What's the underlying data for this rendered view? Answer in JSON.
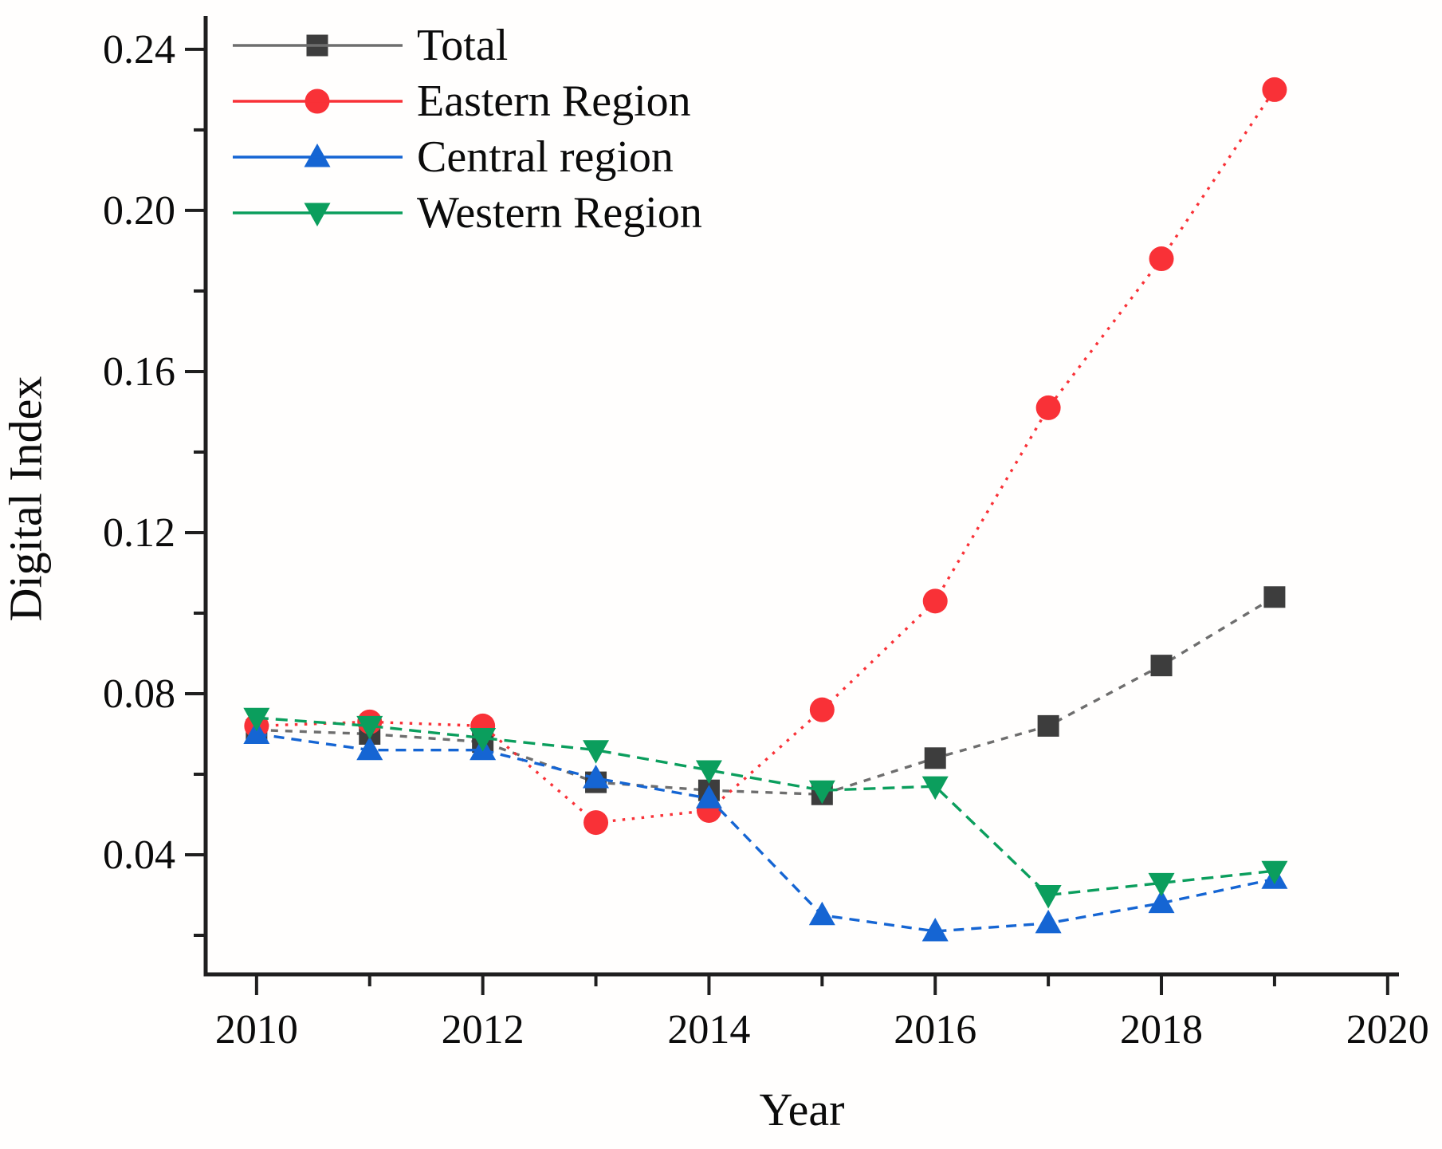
{
  "chart_data": {
    "type": "line",
    "title": "",
    "xlabel": "Year",
    "ylabel": "Digital Index",
    "x": [
      2010,
      2011,
      2012,
      2013,
      2014,
      2015,
      2016,
      2017,
      2018,
      2019
    ],
    "series": [
      {
        "name": "Total",
        "marker": "square",
        "marker_color": "#3d3d3d",
        "line_color": "#6e6e6e",
        "dash": [
          9,
          9
        ],
        "values": [
          0.071,
          0.07,
          0.068,
          0.058,
          0.056,
          0.055,
          0.064,
          0.072,
          0.087,
          0.104
        ]
      },
      {
        "name": "Eastern Region",
        "marker": "circle",
        "marker_color": "#f93137",
        "line_color": "#f93137",
        "dash": [
          3.5,
          8.5
        ],
        "values": [
          0.072,
          0.073,
          0.072,
          0.048,
          0.051,
          0.076,
          0.103,
          0.151,
          0.188,
          0.23
        ]
      },
      {
        "name": "Central region",
        "marker": "triangle-up",
        "marker_color": "#1565d3",
        "line_color": "#1565d3",
        "dash": [
          13,
          9
        ],
        "values": [
          0.07,
          0.066,
          0.066,
          0.059,
          0.054,
          0.025,
          0.021,
          0.023,
          0.028,
          0.034
        ]
      },
      {
        "name": "Western Region",
        "marker": "triangle-down",
        "marker_color": "#0b9e5d",
        "line_color": "#0b9e5d",
        "dash": [
          15,
          9
        ],
        "values": [
          0.074,
          0.072,
          0.069,
          0.066,
          0.061,
          0.056,
          0.057,
          0.03,
          0.033,
          0.036
        ]
      }
    ],
    "xlim": [
      2009.55,
      2020.1
    ],
    "ylim": [
      0.0103,
      0.2483
    ],
    "x_ticks": {
      "major": [
        2010,
        2012,
        2014,
        2016,
        2018,
        2020
      ],
      "minor": [
        2011,
        2013,
        2015,
        2017,
        2019
      ]
    },
    "y_ticks": {
      "major": [
        0.04,
        0.08,
        0.12,
        0.16,
        0.2,
        0.24
      ],
      "minor": [
        0.02,
        0.06,
        0.1,
        0.14,
        0.18,
        0.22
      ]
    },
    "y_tick_labels": [
      "0.04",
      "0.08",
      "0.12",
      "0.16",
      "0.20",
      "0.24"
    ],
    "x_tick_labels": [
      "2010",
      "2012",
      "2014",
      "2016",
      "2018",
      "2020"
    ],
    "grid": false,
    "legend": {
      "position": "top-left",
      "entries": [
        "Total",
        "Eastern Region",
        "Central region",
        "Western Region"
      ]
    }
  }
}
